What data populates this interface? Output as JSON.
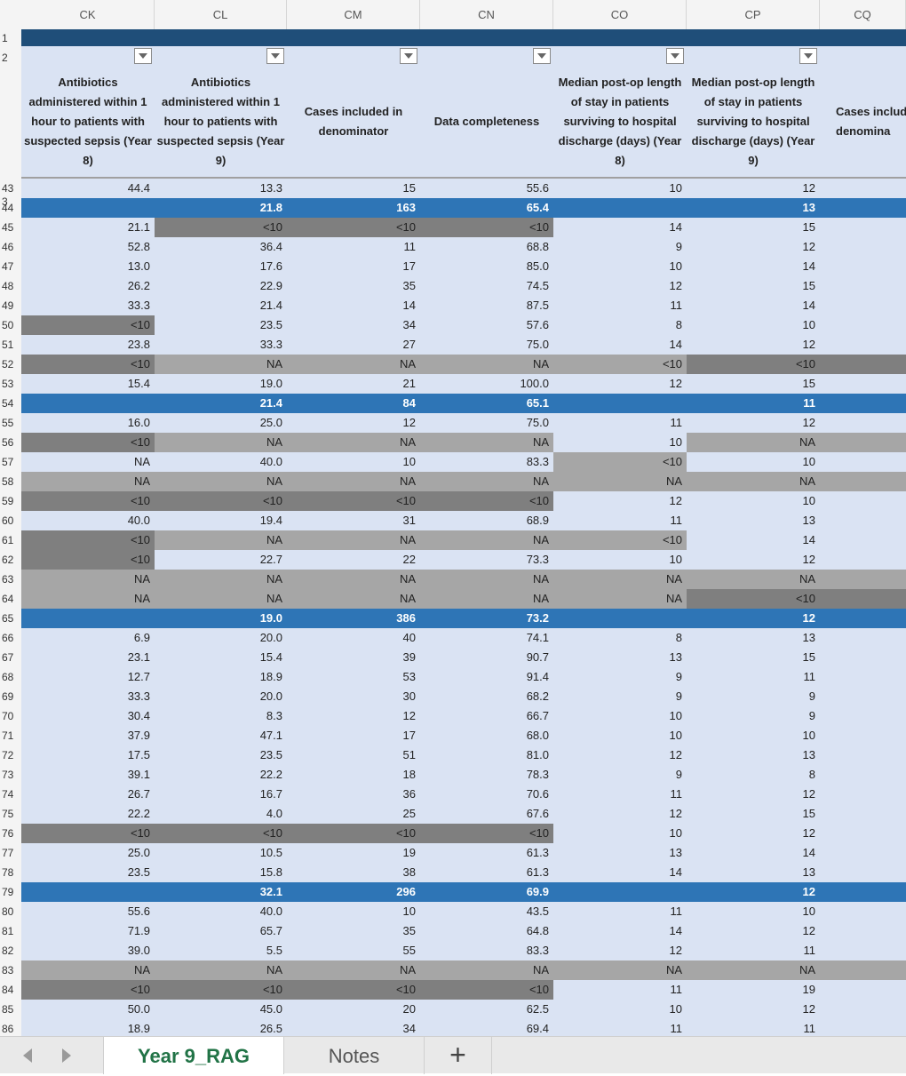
{
  "columns": [
    "CK",
    "CL",
    "CM",
    "CN",
    "CO",
    "CP",
    "CQ"
  ],
  "headers": [
    "Antibiotics administered within 1 hour to patients with suspected sepsis (Year 8)",
    "Antibiotics administered within 1 hour to patients with suspected sepsis (Year 9)",
    "Cases included in denominator",
    "Data completeness",
    "Median post-op length of stay in patients surviving to hospital discharge (days) (Year 8)",
    "Median post-op length of stay in patients surviving to hospital discharge (days) (Year 9)",
    "Cases includ denomina"
  ],
  "top_row_numbers": [
    "1",
    "2",
    "3"
  ],
  "rows": [
    {
      "n": "43",
      "t": "n",
      "c": [
        "44.4",
        "13.3",
        "15",
        "55.6",
        "10",
        "12",
        ""
      ],
      "s": []
    },
    {
      "n": "44",
      "t": "s",
      "c": [
        "",
        "21.8",
        "163",
        "65.4",
        "",
        "13",
        ""
      ],
      "s": []
    },
    {
      "n": "45",
      "t": "n",
      "c": [
        "21.1",
        "<10",
        "<10",
        "<10",
        "14",
        "15",
        ""
      ],
      "s": [
        null,
        "d",
        "d",
        "d"
      ]
    },
    {
      "n": "46",
      "t": "n",
      "c": [
        "52.8",
        "36.4",
        "11",
        "68.8",
        "9",
        "12",
        ""
      ],
      "s": []
    },
    {
      "n": "47",
      "t": "n",
      "c": [
        "13.0",
        "17.6",
        "17",
        "85.0",
        "10",
        "14",
        ""
      ],
      "s": []
    },
    {
      "n": "48",
      "t": "n",
      "c": [
        "26.2",
        "22.9",
        "35",
        "74.5",
        "12",
        "15",
        ""
      ],
      "s": []
    },
    {
      "n": "49",
      "t": "n",
      "c": [
        "33.3",
        "21.4",
        "14",
        "87.5",
        "11",
        "14",
        ""
      ],
      "s": []
    },
    {
      "n": "50",
      "t": "n",
      "c": [
        "<10",
        "23.5",
        "34",
        "57.6",
        "8",
        "10",
        ""
      ],
      "s": [
        "d"
      ]
    },
    {
      "n": "51",
      "t": "n",
      "c": [
        "23.8",
        "33.3",
        "27",
        "75.0",
        "14",
        "12",
        ""
      ],
      "s": []
    },
    {
      "n": "52",
      "t": "n",
      "c": [
        "<10",
        "NA",
        "NA",
        "NA",
        "<10",
        "<10",
        ""
      ],
      "s": [
        "d",
        "l",
        "l",
        "l",
        "l",
        "d",
        "d"
      ]
    },
    {
      "n": "53",
      "t": "n",
      "c": [
        "15.4",
        "19.0",
        "21",
        "100.0",
        "12",
        "15",
        ""
      ],
      "s": []
    },
    {
      "n": "54",
      "t": "s",
      "c": [
        "",
        "21.4",
        "84",
        "65.1",
        "",
        "11",
        ""
      ],
      "s": []
    },
    {
      "n": "55",
      "t": "n",
      "c": [
        "16.0",
        "25.0",
        "12",
        "75.0",
        "11",
        "12",
        ""
      ],
      "s": []
    },
    {
      "n": "56",
      "t": "n",
      "c": [
        "<10",
        "NA",
        "NA",
        "NA",
        "10",
        "NA",
        ""
      ],
      "s": [
        "d",
        "l",
        "l",
        "l",
        null,
        "l",
        "l"
      ]
    },
    {
      "n": "57",
      "t": "n",
      "c": [
        "NA",
        "40.0",
        "10",
        "83.3",
        "<10",
        "10",
        ""
      ],
      "s": [
        null,
        null,
        null,
        null,
        "l"
      ]
    },
    {
      "n": "58",
      "t": "n",
      "c": [
        "NA",
        "NA",
        "NA",
        "NA",
        "NA",
        "NA",
        ""
      ],
      "s": [
        "l",
        "l",
        "l",
        "l",
        "l",
        "l",
        "l"
      ]
    },
    {
      "n": "59",
      "t": "n",
      "c": [
        "<10",
        "<10",
        "<10",
        "<10",
        "12",
        "10",
        ""
      ],
      "s": [
        "d",
        "d",
        "d",
        "d"
      ]
    },
    {
      "n": "60",
      "t": "n",
      "c": [
        "40.0",
        "19.4",
        "31",
        "68.9",
        "11",
        "13",
        ""
      ],
      "s": []
    },
    {
      "n": "61",
      "t": "n",
      "c": [
        "<10",
        "NA",
        "NA",
        "NA",
        "<10",
        "14",
        ""
      ],
      "s": [
        "d",
        "l",
        "l",
        "l",
        "l"
      ]
    },
    {
      "n": "62",
      "t": "n",
      "c": [
        "<10",
        "22.7",
        "22",
        "73.3",
        "10",
        "12",
        ""
      ],
      "s": [
        "d"
      ]
    },
    {
      "n": "63",
      "t": "n",
      "c": [
        "NA",
        "NA",
        "NA",
        "NA",
        "NA",
        "NA",
        ""
      ],
      "s": [
        "l",
        "l",
        "l",
        "l",
        "l",
        "l",
        "l"
      ]
    },
    {
      "n": "64",
      "t": "n",
      "c": [
        "NA",
        "NA",
        "NA",
        "NA",
        "NA",
        "<10",
        ""
      ],
      "s": [
        "l",
        "l",
        "l",
        "l",
        "l",
        "d",
        "d"
      ]
    },
    {
      "n": "65",
      "t": "s",
      "c": [
        "",
        "19.0",
        "386",
        "73.2",
        "",
        "12",
        ""
      ],
      "s": []
    },
    {
      "n": "66",
      "t": "n",
      "c": [
        "6.9",
        "20.0",
        "40",
        "74.1",
        "8",
        "13",
        ""
      ],
      "s": []
    },
    {
      "n": "67",
      "t": "n",
      "c": [
        "23.1",
        "15.4",
        "39",
        "90.7",
        "13",
        "15",
        ""
      ],
      "s": []
    },
    {
      "n": "68",
      "t": "n",
      "c": [
        "12.7",
        "18.9",
        "53",
        "91.4",
        "9",
        "11",
        ""
      ],
      "s": []
    },
    {
      "n": "69",
      "t": "n",
      "c": [
        "33.3",
        "20.0",
        "30",
        "68.2",
        "9",
        "9",
        ""
      ],
      "s": []
    },
    {
      "n": "70",
      "t": "n",
      "c": [
        "30.4",
        "8.3",
        "12",
        "66.7",
        "10",
        "9",
        ""
      ],
      "s": []
    },
    {
      "n": "71",
      "t": "n",
      "c": [
        "37.9",
        "47.1",
        "17",
        "68.0",
        "10",
        "10",
        ""
      ],
      "s": []
    },
    {
      "n": "72",
      "t": "n",
      "c": [
        "17.5",
        "23.5",
        "51",
        "81.0",
        "12",
        "13",
        ""
      ],
      "s": []
    },
    {
      "n": "73",
      "t": "n",
      "c": [
        "39.1",
        "22.2",
        "18",
        "78.3",
        "9",
        "8",
        ""
      ],
      "s": []
    },
    {
      "n": "74",
      "t": "n",
      "c": [
        "26.7",
        "16.7",
        "36",
        "70.6",
        "11",
        "12",
        ""
      ],
      "s": []
    },
    {
      "n": "75",
      "t": "n",
      "c": [
        "22.2",
        "4.0",
        "25",
        "67.6",
        "12",
        "15",
        ""
      ],
      "s": []
    },
    {
      "n": "76",
      "t": "n",
      "c": [
        "<10",
        "<10",
        "<10",
        "<10",
        "10",
        "12",
        ""
      ],
      "s": [
        "d",
        "d",
        "d",
        "d"
      ]
    },
    {
      "n": "77",
      "t": "n",
      "c": [
        "25.0",
        "10.5",
        "19",
        "61.3",
        "13",
        "14",
        ""
      ],
      "s": []
    },
    {
      "n": "78",
      "t": "n",
      "c": [
        "23.5",
        "15.8",
        "38",
        "61.3",
        "14",
        "13",
        ""
      ],
      "s": []
    },
    {
      "n": "79",
      "t": "s",
      "c": [
        "",
        "32.1",
        "296",
        "69.9",
        "",
        "12",
        ""
      ],
      "s": []
    },
    {
      "n": "80",
      "t": "n",
      "c": [
        "55.6",
        "40.0",
        "10",
        "43.5",
        "11",
        "10",
        ""
      ],
      "s": []
    },
    {
      "n": "81",
      "t": "n",
      "c": [
        "71.9",
        "65.7",
        "35",
        "64.8",
        "14",
        "12",
        ""
      ],
      "s": []
    },
    {
      "n": "82",
      "t": "n",
      "c": [
        "39.0",
        "5.5",
        "55",
        "83.3",
        "12",
        "11",
        ""
      ],
      "s": []
    },
    {
      "n": "83",
      "t": "n",
      "c": [
        "NA",
        "NA",
        "NA",
        "NA",
        "NA",
        "NA",
        ""
      ],
      "s": [
        "l",
        "l",
        "l",
        "l",
        "l",
        "l",
        "l"
      ]
    },
    {
      "n": "84",
      "t": "n",
      "c": [
        "<10",
        "<10",
        "<10",
        "<10",
        "11",
        "19",
        ""
      ],
      "s": [
        "d",
        "d",
        "d",
        "d"
      ]
    },
    {
      "n": "85",
      "t": "n",
      "c": [
        "50.0",
        "45.0",
        "20",
        "62.5",
        "10",
        "12",
        ""
      ],
      "s": []
    },
    {
      "n": "86",
      "t": "n",
      "c": [
        "18.9",
        "26.5",
        "34",
        "69.4",
        "11",
        "11",
        ""
      ],
      "s": []
    }
  ],
  "tabs": {
    "active": "Year 9_RAG",
    "inactive": "Notes",
    "add": "+"
  },
  "nav_icons": [
    "chevron-left-icon",
    "chevron-right-icon"
  ],
  "colors": {
    "title_band": "#1f4e79",
    "header_bg": "#dae3f3",
    "data_bg": "#dae3f3",
    "summary_bg": "#2e75b6",
    "suppressed_dark": "#7f7f7f",
    "na_light": "#a6a6a6",
    "active_tab_text": "#217346"
  }
}
